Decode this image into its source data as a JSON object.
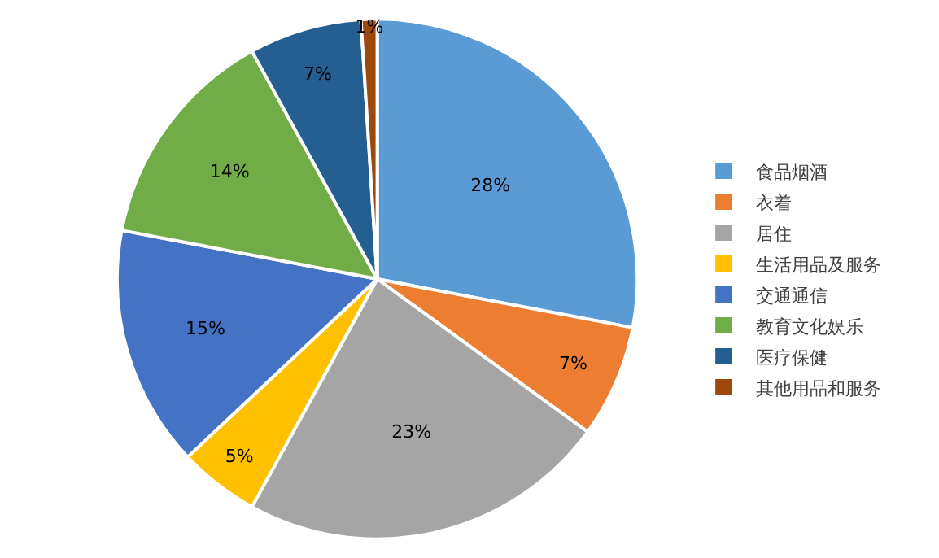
{
  "chart_data": {
    "type": "pie",
    "categories": [
      "食品烟酒",
      "衣着",
      "居住",
      "生活用品及服务",
      "交通通信",
      "教育文化娱乐",
      "医疗保健",
      "其他用品和服务"
    ],
    "values": [
      28,
      7,
      23,
      5,
      15,
      14,
      7,
      1
    ],
    "colors": [
      "#5b9bd5",
      "#ed7d31",
      "#a5a5a5",
      "#ffc000",
      "#4472c4",
      "#70ad47",
      "#255e91",
      "#9e480e"
    ],
    "value_labels": [
      "28%",
      "7%",
      "23%",
      "5%",
      "15%",
      "14%",
      "7%",
      "1%"
    ],
    "legend": "right"
  }
}
